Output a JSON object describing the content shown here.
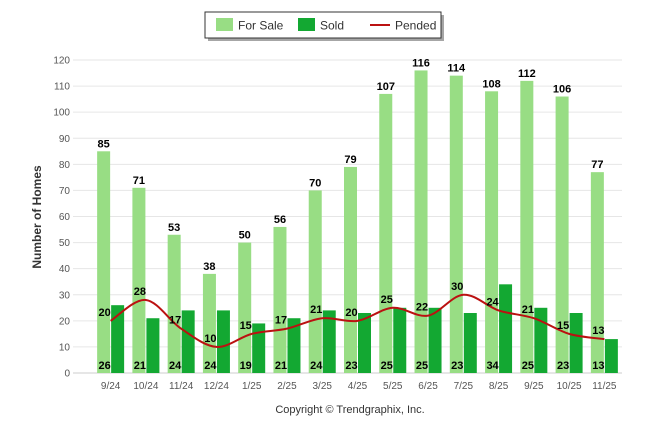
{
  "chart_data": {
    "type": "bar",
    "title": "",
    "xlabel": "",
    "ylabel": "Number of Homes",
    "ylim": [
      0,
      120
    ],
    "yticks": [
      0,
      10,
      20,
      30,
      40,
      50,
      60,
      70,
      80,
      90,
      100,
      110,
      120
    ],
    "grid": true,
    "legend_position": "top-center",
    "categories": [
      "9/24",
      "10/24",
      "11/24",
      "12/24",
      "1/25",
      "2/25",
      "3/25",
      "4/25",
      "5/25",
      "6/25",
      "7/25",
      "8/25",
      "9/25",
      "10/25",
      "11/25"
    ],
    "series": [
      {
        "name": "For Sale",
        "kind": "bar",
        "color": "#98dd84",
        "values": [
          85,
          71,
          53,
          38,
          50,
          56,
          70,
          79,
          107,
          116,
          114,
          108,
          112,
          106,
          77
        ]
      },
      {
        "name": "Sold",
        "kind": "bar",
        "color": "#13a832",
        "values": [
          26,
          21,
          24,
          24,
          19,
          21,
          24,
          23,
          25,
          25,
          23,
          34,
          25,
          23,
          13
        ]
      },
      {
        "name": "Pended",
        "kind": "line",
        "color": "#bb1111",
        "values": [
          20,
          28,
          17,
          10,
          15,
          17,
          21,
          20,
          25,
          22,
          30,
          24,
          21,
          15,
          13
        ]
      }
    ],
    "credit": "Copyright © Trendgraphix, Inc."
  }
}
